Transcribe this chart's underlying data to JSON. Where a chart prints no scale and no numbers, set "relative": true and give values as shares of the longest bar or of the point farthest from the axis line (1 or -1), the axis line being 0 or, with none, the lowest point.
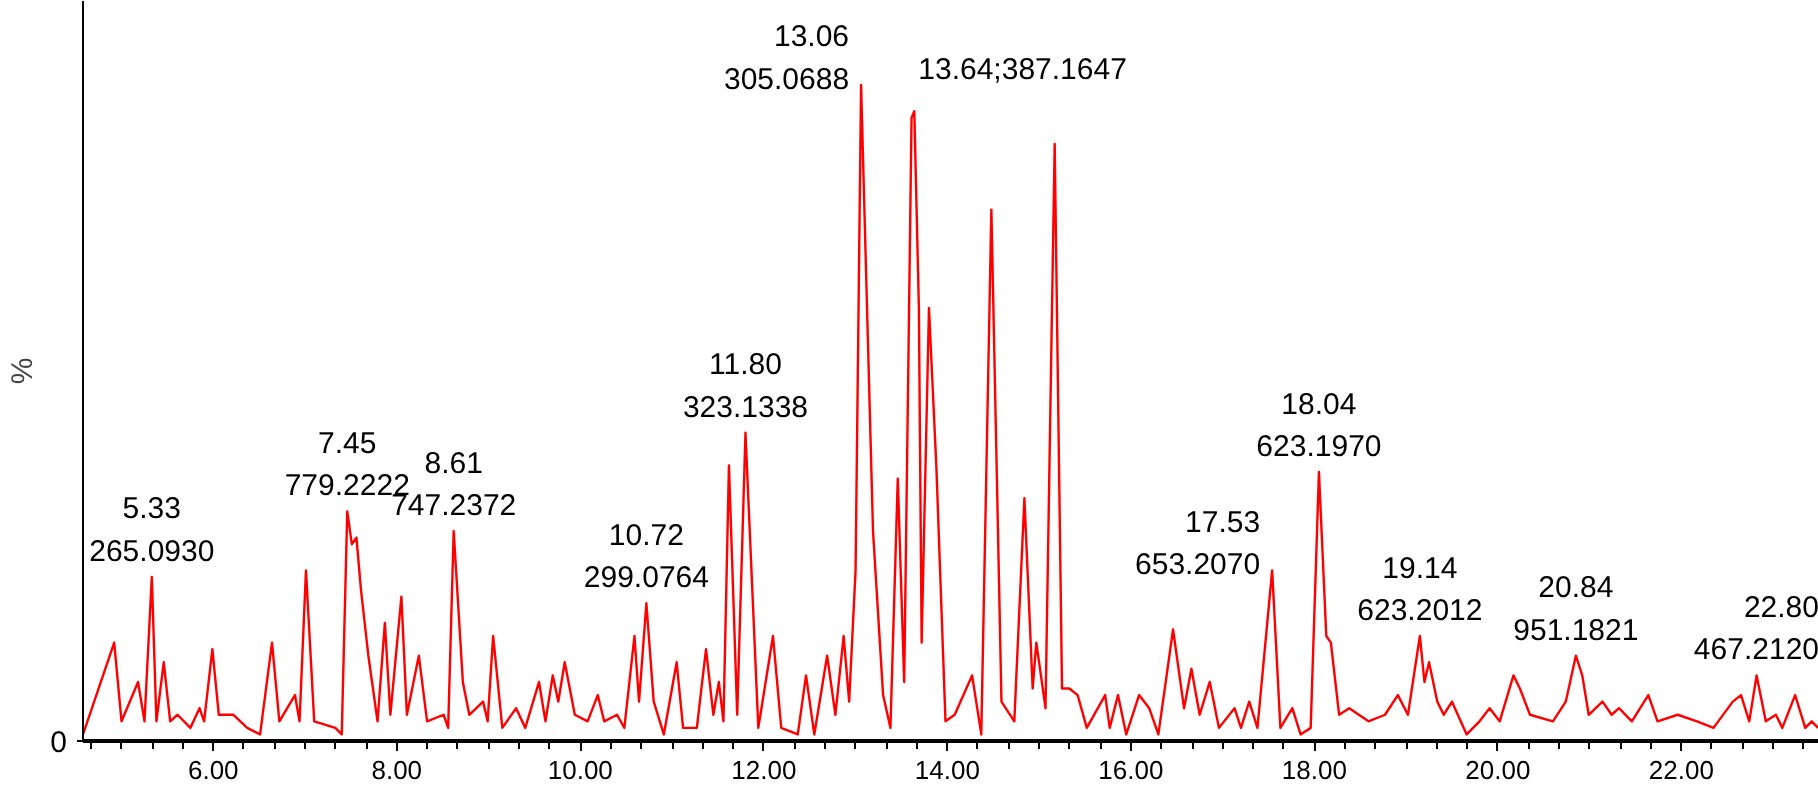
{
  "chart_data": {
    "type": "line",
    "relative": true,
    "ylabel": "%",
    "x": [
      4.58,
      4.92,
      5.0,
      5.18,
      5.25,
      5.33,
      5.38,
      5.46,
      5.53,
      5.61,
      5.75,
      5.85,
      5.9,
      5.99,
      6.06,
      6.22,
      6.37,
      6.51,
      6.64,
      6.72,
      6.89,
      6.94,
      7.01,
      7.1,
      7.33,
      7.4,
      7.46,
      7.51,
      7.56,
      7.61,
      7.69,
      7.79,
      7.87,
      7.93,
      8.05,
      8.11,
      8.24,
      8.33,
      8.51,
      8.56,
      8.62,
      8.72,
      8.79,
      8.94,
      8.99,
      9.05,
      9.15,
      9.3,
      9.4,
      9.55,
      9.62,
      9.7,
      9.76,
      9.83,
      9.94,
      10.08,
      10.19,
      10.26,
      10.4,
      10.48,
      10.59,
      10.64,
      10.72,
      10.8,
      10.91,
      11.05,
      11.12,
      11.27,
      11.37,
      11.45,
      11.51,
      11.56,
      11.62,
      11.71,
      11.8,
      11.94,
      12.1,
      12.19,
      12.37,
      12.46,
      12.55,
      12.69,
      12.78,
      12.87,
      12.93,
      13.0,
      13.06,
      13.1,
      13.19,
      13.3,
      13.38,
      13.46,
      13.53,
      13.61,
      13.64,
      13.69,
      13.72,
      13.8,
      13.88,
      13.98,
      14.08,
      14.27,
      14.37,
      14.48,
      14.59,
      14.73,
      14.84,
      14.93,
      14.97,
      15.07,
      15.17,
      15.25,
      15.33,
      15.42,
      15.52,
      15.72,
      15.77,
      15.86,
      15.95,
      16.09,
      16.2,
      16.3,
      16.46,
      16.58,
      16.66,
      16.75,
      16.86,
      16.96,
      17.13,
      17.2,
      17.29,
      17.38,
      17.54,
      17.63,
      17.76,
      17.85,
      17.96,
      18.05,
      18.13,
      18.18,
      18.27,
      18.38,
      18.59,
      18.77,
      18.91,
      19.02,
      19.15,
      19.2,
      19.25,
      19.34,
      19.41,
      19.5,
      19.66,
      19.8,
      19.91,
      20.02,
      20.17,
      20.24,
      20.35,
      20.6,
      20.74,
      20.85,
      20.92,
      20.99,
      21.14,
      21.24,
      21.32,
      21.46,
      21.64,
      21.74,
      21.96,
      22.17,
      22.35,
      22.56,
      22.65,
      22.74,
      22.82,
      22.92,
      23.03,
      23.1,
      23.24,
      23.35,
      23.42,
      23.49
    ],
    "series": [
      {
        "color": "#ff0000",
        "values": [
          0.01,
          0.15,
          0.03,
          0.09,
          0.03,
          0.25,
          0.03,
          0.12,
          0.03,
          0.04,
          0.02,
          0.05,
          0.03,
          0.14,
          0.04,
          0.04,
          0.02,
          0.01,
          0.15,
          0.03,
          0.07,
          0.03,
          0.26,
          0.03,
          0.02,
          0.01,
          0.35,
          0.3,
          0.31,
          0.23,
          0.13,
          0.03,
          0.18,
          0.04,
          0.22,
          0.04,
          0.13,
          0.03,
          0.04,
          0.02,
          0.32,
          0.09,
          0.04,
          0.06,
          0.03,
          0.16,
          0.02,
          0.05,
          0.02,
          0.09,
          0.03,
          0.1,
          0.06,
          0.12,
          0.04,
          0.03,
          0.07,
          0.03,
          0.04,
          0.02,
          0.16,
          0.06,
          0.21,
          0.06,
          0.01,
          0.12,
          0.02,
          0.02,
          0.14,
          0.04,
          0.09,
          0.03,
          0.42,
          0.04,
          0.47,
          0.02,
          0.16,
          0.02,
          0.01,
          0.1,
          0.01,
          0.13,
          0.04,
          0.16,
          0.06,
          0.26,
          1.0,
          0.79,
          0.32,
          0.07,
          0.02,
          0.4,
          0.09,
          0.95,
          0.96,
          0.66,
          0.15,
          0.66,
          0.42,
          0.03,
          0.04,
          0.1,
          0.01,
          0.81,
          0.06,
          0.03,
          0.37,
          0.08,
          0.15,
          0.05,
          0.91,
          0.08,
          0.08,
          0.07,
          0.02,
          0.07,
          0.02,
          0.07,
          0.01,
          0.07,
          0.05,
          0.01,
          0.17,
          0.05,
          0.11,
          0.04,
          0.09,
          0.02,
          0.05,
          0.02,
          0.06,
          0.02,
          0.26,
          0.02,
          0.05,
          0.01,
          0.02,
          0.41,
          0.16,
          0.15,
          0.04,
          0.05,
          0.03,
          0.04,
          0.07,
          0.04,
          0.16,
          0.09,
          0.12,
          0.06,
          0.04,
          0.06,
          0.01,
          0.03,
          0.05,
          0.03,
          0.1,
          0.08,
          0.04,
          0.03,
          0.06,
          0.13,
          0.1,
          0.04,
          0.06,
          0.04,
          0.05,
          0.03,
          0.07,
          0.03,
          0.04,
          0.03,
          0.02,
          0.06,
          0.07,
          0.03,
          0.1,
          0.03,
          0.04,
          0.02,
          0.07,
          0.02,
          0.03,
          0.02
        ]
      }
    ],
    "xlim": [
      4.58,
      23.5
    ],
    "xticks": [
      {
        "value": 6,
        "label": "6.00"
      },
      {
        "value": 8,
        "label": "8.00"
      },
      {
        "value": 10,
        "label": "10.00"
      },
      {
        "value": 12,
        "label": "12.00"
      },
      {
        "value": 14,
        "label": "14.00"
      },
      {
        "value": 16,
        "label": "16.00"
      },
      {
        "value": 18,
        "label": "18.00"
      },
      {
        "value": 20,
        "label": "20.00"
      },
      {
        "value": 22,
        "label": "22.00"
      }
    ],
    "annotations": [
      {
        "text": "0",
        "x": 4.58,
        "y": 0
      },
      {
        "text": "5.33\n265.0930",
        "x": 5.33,
        "y": 0.25
      },
      {
        "text": "7.45\n779.2222",
        "x": 7.46,
        "y": 0.35
      },
      {
        "text": "8.61\n747.2372",
        "x": 8.62,
        "y": 0.32
      },
      {
        "text": "10.72\n299.0764",
        "x": 10.72,
        "y": 0.21
      },
      {
        "text": "11.80\n323.1338",
        "x": 11.8,
        "y": 0.47
      },
      {
        "text": "13.06\n305.0688",
        "x": 13.06,
        "y": 1.0
      },
      {
        "text": "13.64;387.1647",
        "x": 13.64,
        "y": 0.96
      },
      {
        "text": "17.53\n653.2070",
        "x": 17.54,
        "y": 0.26
      },
      {
        "text": "18.04\n623.1970",
        "x": 18.05,
        "y": 0.41
      },
      {
        "text": "19.14\n623.2012",
        "x": 19.15,
        "y": 0.16
      },
      {
        "text": "20.84\n951.1821",
        "x": 20.85,
        "y": 0.13
      },
      {
        "text": "22.80\n467.2120",
        "x": 22.82,
        "y": 0.1
      }
    ]
  }
}
